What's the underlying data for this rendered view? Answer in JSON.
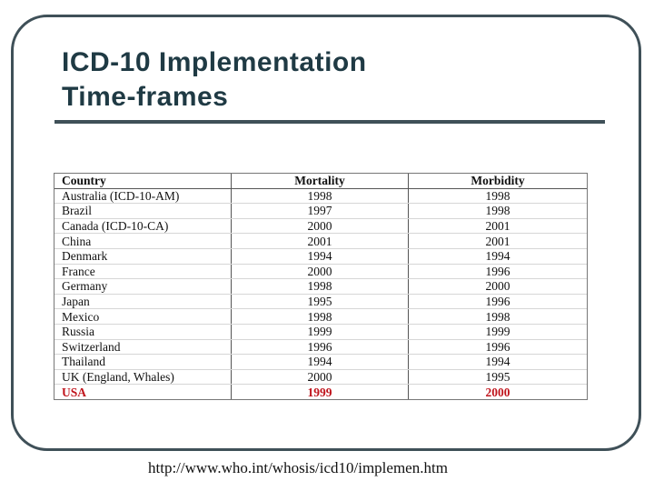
{
  "slide": {
    "title_line1": "ICD-10 Implementation",
    "title_line2": "Time-frames",
    "source_url": "http://www.who.int/whosis/icd10/implemen.htm"
  },
  "table": {
    "headers": [
      "Country",
      "Mortality",
      "Morbidity"
    ],
    "highlight_color": "#c0141c",
    "rows": [
      {
        "country": "Australia (ICD-10-AM)",
        "mortality": "1998",
        "morbidity": "1998"
      },
      {
        "country": "Brazil",
        "mortality": "1997",
        "morbidity": "1998"
      },
      {
        "country": "Canada (ICD-10-CA)",
        "mortality": "2000",
        "morbidity": "2001"
      },
      {
        "country": "China",
        "mortality": "2001",
        "morbidity": "2001"
      },
      {
        "country": "Denmark",
        "mortality": "1994",
        "morbidity": "1994"
      },
      {
        "country": "France",
        "mortality": "2000",
        "morbidity": "1996"
      },
      {
        "country": "Germany",
        "mortality": "1998",
        "morbidity": "2000"
      },
      {
        "country": "Japan",
        "mortality": "1995",
        "morbidity": "1996"
      },
      {
        "country": "Mexico",
        "mortality": "1998",
        "morbidity": "1998"
      },
      {
        "country": "Russia",
        "mortality": "1999",
        "morbidity": "1999"
      },
      {
        "country": "Switzerland",
        "mortality": "1996",
        "morbidity": "1996"
      },
      {
        "country": "Thailand",
        "mortality": "1994",
        "morbidity": "1994"
      },
      {
        "country": "UK (England, Whales)",
        "mortality": "2000",
        "morbidity": "1995"
      },
      {
        "country": "USA",
        "mortality": "1999",
        "morbidity": "2000",
        "highlight": true
      }
    ]
  }
}
